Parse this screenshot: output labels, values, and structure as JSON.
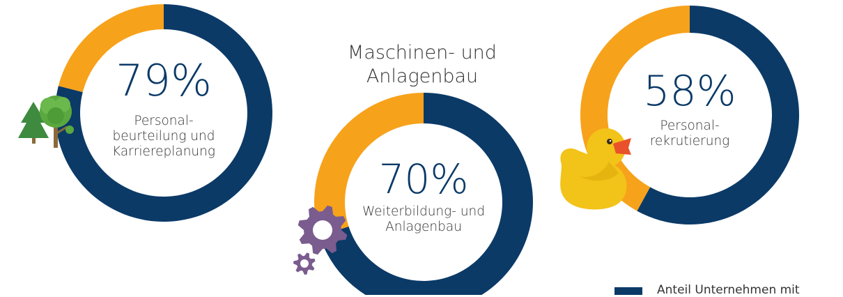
{
  "colors": {
    "primary": "#0b3a67",
    "secondary": "#f7a21b",
    "text": "#333333",
    "tree_dark": "#3e8a3e",
    "tree_light": "#5aa83f",
    "trunk": "#8a6a3a",
    "gear": "#7a5c8f",
    "duck_body": "#f2c318",
    "duck_beak": "#e8512a"
  },
  "heading": {
    "line1": "Maschinen- und",
    "line2": "Anlagenbau"
  },
  "chart_data": [
    {
      "type": "pie",
      "donut": true,
      "values": [
        79,
        21
      ],
      "label": "79%",
      "caption": [
        "Personal-",
        "beurteilung und",
        "Karriereplanung"
      ]
    },
    {
      "type": "pie",
      "donut": true,
      "values": [
        70,
        30
      ],
      "label": "70%",
      "caption": [
        "Weiterbildung- und",
        "Anlagenbau"
      ]
    },
    {
      "type": "pie",
      "donut": true,
      "values": [
        58,
        42
      ],
      "label": "58%",
      "caption": [
        "Personal-",
        "rekrutierung"
      ]
    }
  ],
  "legend": {
    "items": [
      {
        "label": "Anteil Unternehmen mit",
        "color": "#0b3a67"
      }
    ]
  },
  "icons": {
    "tree": "trees-icon",
    "gear": "gears-icon",
    "duck": "rubber-duck-icon"
  }
}
